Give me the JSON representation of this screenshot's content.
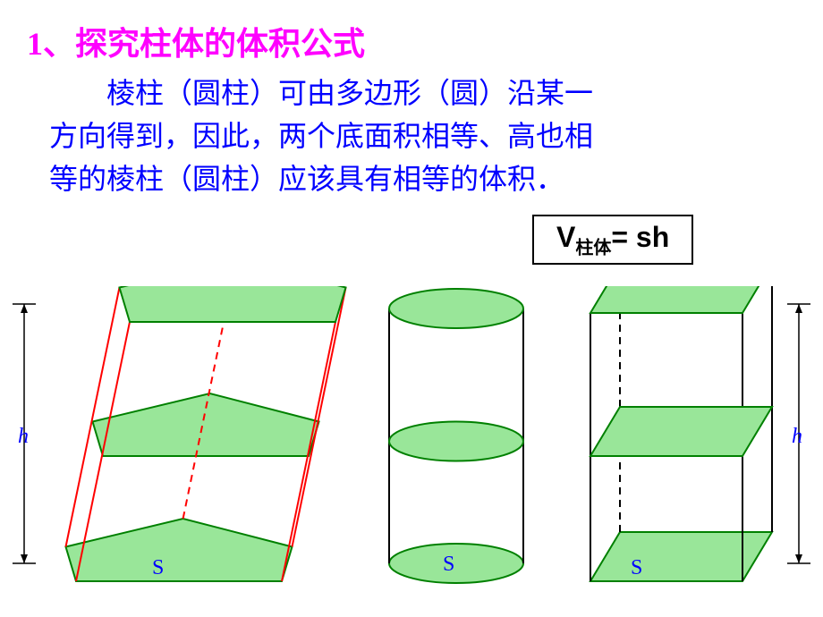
{
  "title": {
    "text": "1、探究柱体的体积公式",
    "color": "#ff00ff",
    "fontsize": 36
  },
  "body": {
    "text": "棱柱（圆柱）可由多边形（圆）沿某一方向得到，因此，两个底面积相等、高也相等的棱柱（圆柱）应该具有相等的体积．",
    "color": "#0000ff",
    "fontsize": 32
  },
  "formula": {
    "prefix": "V",
    "subscript": "柱体",
    "rhs": "= sh",
    "fontsize": 32,
    "border_color": "#000000"
  },
  "diagram": {
    "height_label": "h",
    "base_label": "S",
    "label_color": "#0000ff",
    "label_fontsize": 24,
    "fill_color": "#99e699",
    "fill_stroke": "#008000",
    "prism_edge_color": "#ff0000",
    "edge_stroke_width": 2,
    "black": "#000000",
    "dimension_line_width": 1.5,
    "shapes": {
      "left": "oblique-pentagonal-prism",
      "middle": "cylinder",
      "right": "rectangular-prism"
    }
  }
}
